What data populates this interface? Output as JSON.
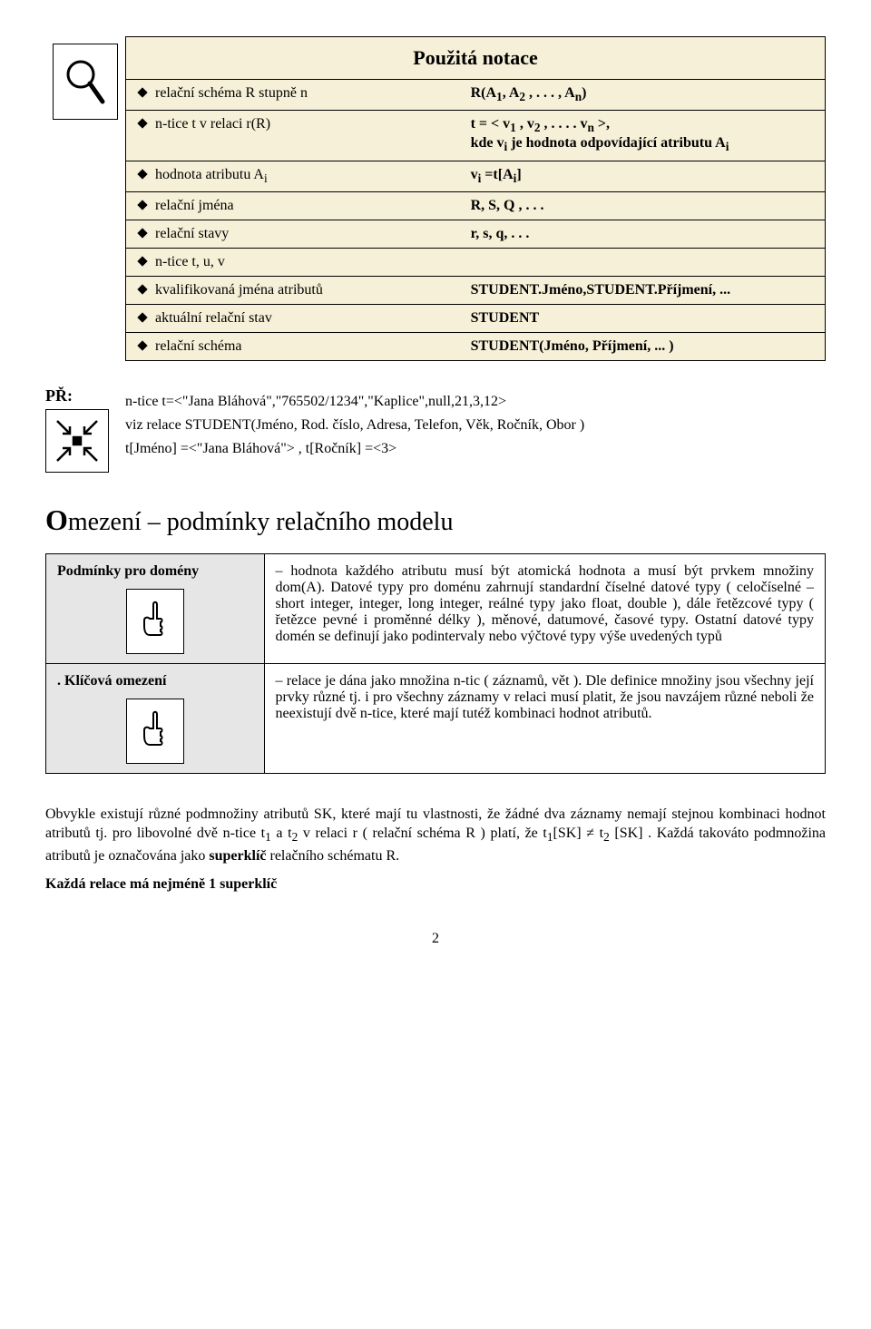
{
  "title": "Použitá notace",
  "notation_rows": [
    {
      "lhs": "relační schéma R stupně n",
      "rhs": "R(A<sub>1</sub>, A<sub>2</sub> , . . . , A<sub>n</sub>)"
    },
    {
      "lhs": "n-tice t v relaci r(R)",
      "rhs": "t = < v<sub>1</sub> , v<sub>2</sub> , . . . . v<sub>n</sub> >,<br>kde v<sub>i</sub> je hodnota odpovídající atributu A<sub>i</sub>"
    },
    {
      "lhs": "hodnota atributu A<sub>i</sub>",
      "rhs": "v<sub>i</sub> =t[A<sub>i</sub>]"
    },
    {
      "lhs": "relační jména",
      "rhs": "R, S, Q , . . ."
    },
    {
      "lhs": "relační stavy",
      "rhs": "r, s, q, . . ."
    },
    {
      "lhs": "n-tice t, u, v",
      "rhs": ""
    },
    {
      "lhs": "kvalifikovaná jména atributů",
      "rhs": "STUDENT.Jméno,STUDENT.Příjmení, ..."
    },
    {
      "lhs": "aktuální relační stav",
      "rhs": "STUDENT"
    },
    {
      "lhs": "relační schéma",
      "rhs": "STUDENT(Jméno, Příjmení, ... )"
    }
  ],
  "pr_label": "PŘ:",
  "pr_lines": [
    "n-tice  t=<\"Jana Bláhová\",\"765502/1234\",\"Kaplice\",null,21,3,12>",
    "viz relace STUDENT(Jméno, Rod. číslo, Adresa, Telefon, Věk, Ročník, Obor )",
    "t[Jméno] =<\"Jana Bláhová\"> ,  t[Ročník] =<3>"
  ],
  "section_title_big": "O",
  "section_title_rest": "mezení  –  podmínky relačního modelu",
  "conditions": [
    {
      "label": "Podmínky pro domény",
      "text": "– hodnota každého atributu musí být atomická hodnota a musí být prvkem množiny dom(A). Datové typy pro doménu zahrnují standardní číselné datové typy ( celočíselné – short integer, integer, long integer, reálné typy jako float, double ), dále řetězcové typy ( řetězce pevné i proměnné délky ), měnové, datumové, časové typy.  Ostatní datové typy domén se definují jako podintervaly nebo výčtové typy výše uvedených typů"
    },
    {
      "label": ". Klíčová omezení",
      "text": "– relace je dána jako množina n-tic ( záznamů, vět ). Dle definice množiny jsou všechny její prvky různé tj. i pro všechny záznamy v relaci musí platit, že jsou navzájem různé neboli že neexistují dvě n-tice, které mají tutéž kombinaci hodnot atributů."
    }
  ],
  "para1": "Obvykle existují různé podmnožiny atributů SK, které mají tu vlastnosti, že žádné dva záznamy nemají stejnou kombinaci hodnot atributů tj. pro libovolné dvě n-tice t<sub>1</sub> a t<sub>2</sub>  v relaci r ( relační schéma R ) platí, že  t<sub>1</sub>[SK] ≠ t<sub>2</sub> [SK] . Každá takováto podmnožina atributů je označována jako <b>superklíč</b> relačního schématu R.",
  "para2": "<b>Každá relace má nejméně 1 superklíč</b>",
  "page_number": "2",
  "colors": {
    "box_bg": "#f7f0d8",
    "gray_bg": "#e6e6e6"
  }
}
